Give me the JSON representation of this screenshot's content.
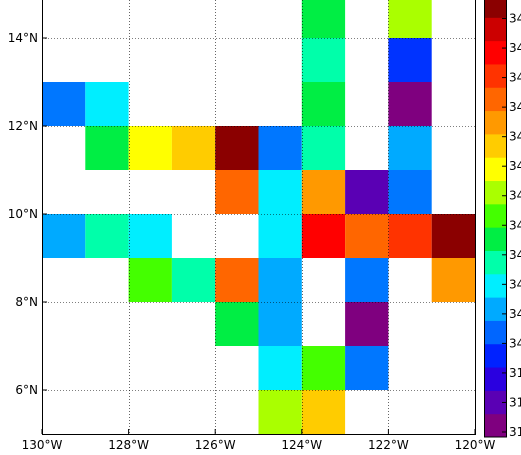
{
  "chart_data": {
    "type": "heatmap",
    "title": "",
    "xlabel": "",
    "ylabel": "",
    "x_range": [
      -130,
      -120
    ],
    "y_range": [
      5,
      15
    ],
    "cell_size_deg": 1,
    "x_ticks": [
      {
        "value": -130,
        "label": "130°W"
      },
      {
        "value": -128,
        "label": "128°W"
      },
      {
        "value": -126,
        "label": "126°W"
      },
      {
        "value": -124,
        "label": "124°W"
      },
      {
        "value": -122,
        "label": "122°W"
      },
      {
        "value": -120,
        "label": "120°W"
      }
    ],
    "y_ticks": [
      {
        "value": 6,
        "label": "6°N"
      },
      {
        "value": 8,
        "label": "8°N"
      },
      {
        "value": 10,
        "label": "10°N"
      },
      {
        "value": 12,
        "label": "12°N"
      },
      {
        "value": 14,
        "label": "14°N"
      }
    ],
    "grid": "dotted",
    "colormap": [
      "#7f007f",
      "#5a00b4",
      "#2a00e0",
      "#0022ff",
      "#0066ff",
      "#00aaff",
      "#00eeff",
      "#00ffaa",
      "#00ee44",
      "#44ff00",
      "#aaff00",
      "#ffff00",
      "#ffcc00",
      "#ff9900",
      "#ff6600",
      "#ff3300",
      "#ff0000",
      "#cc0000",
      "#8b0000"
    ],
    "colorbar_labels": [
      "31",
      "31",
      "31",
      "34",
      "34",
      "34",
      "34",
      "34",
      "34",
      "34",
      "34",
      "34",
      "34",
      "34",
      "34"
    ],
    "cells": [
      {
        "lon": -123.5,
        "lat": 14.5,
        "color": "#00ee44"
      },
      {
        "lon": -121.5,
        "lat": 14.5,
        "color": "#aaff00"
      },
      {
        "lon": -123.5,
        "lat": 13.5,
        "color": "#00ffaa"
      },
      {
        "lon": -121.5,
        "lat": 13.5,
        "color": "#0033ff"
      },
      {
        "lon": -129.5,
        "lat": 12.5,
        "color": "#0077ff"
      },
      {
        "lon": -128.5,
        "lat": 12.5,
        "color": "#00eeff"
      },
      {
        "lon": -123.5,
        "lat": 12.5,
        "color": "#00ee44"
      },
      {
        "lon": -121.5,
        "lat": 12.5,
        "color": "#7f007f"
      },
      {
        "lon": -128.5,
        "lat": 11.5,
        "color": "#00ee44"
      },
      {
        "lon": -127.5,
        "lat": 11.5,
        "color": "#ffff00"
      },
      {
        "lon": -126.5,
        "lat": 11.5,
        "color": "#ffcc00"
      },
      {
        "lon": -125.5,
        "lat": 11.5,
        "color": "#8b0000"
      },
      {
        "lon": -124.5,
        "lat": 11.5,
        "color": "#0077ff"
      },
      {
        "lon": -123.5,
        "lat": 11.5,
        "color": "#00ffaa"
      },
      {
        "lon": -121.5,
        "lat": 11.5,
        "color": "#00aaff"
      },
      {
        "lon": -125.5,
        "lat": 10.5,
        "color": "#ff6600"
      },
      {
        "lon": -124.5,
        "lat": 10.5,
        "color": "#00eeff"
      },
      {
        "lon": -123.5,
        "lat": 10.5,
        "color": "#ff9900"
      },
      {
        "lon": -122.5,
        "lat": 10.5,
        "color": "#5a00b4"
      },
      {
        "lon": -121.5,
        "lat": 10.5,
        "color": "#0077ff"
      },
      {
        "lon": -129.5,
        "lat": 9.5,
        "color": "#00aaff"
      },
      {
        "lon": -128.5,
        "lat": 9.5,
        "color": "#00ffaa"
      },
      {
        "lon": -127.5,
        "lat": 9.5,
        "color": "#00eeff"
      },
      {
        "lon": -124.5,
        "lat": 9.5,
        "color": "#00eeff"
      },
      {
        "lon": -123.5,
        "lat": 9.5,
        "color": "#ff0000"
      },
      {
        "lon": -122.5,
        "lat": 9.5,
        "color": "#ff6600"
      },
      {
        "lon": -121.5,
        "lat": 9.5,
        "color": "#ff3300"
      },
      {
        "lon": -120.5,
        "lat": 9.5,
        "color": "#8b0000"
      },
      {
        "lon": -127.5,
        "lat": 8.5,
        "color": "#44ff00"
      },
      {
        "lon": -126.5,
        "lat": 8.5,
        "color": "#00ffaa"
      },
      {
        "lon": -125.5,
        "lat": 8.5,
        "color": "#ff6600"
      },
      {
        "lon": -124.5,
        "lat": 8.5,
        "color": "#00aaff"
      },
      {
        "lon": -122.5,
        "lat": 8.5,
        "color": "#0077ff"
      },
      {
        "lon": -120.5,
        "lat": 8.5,
        "color": "#ff9900"
      },
      {
        "lon": -125.5,
        "lat": 7.5,
        "color": "#00ee44"
      },
      {
        "lon": -124.5,
        "lat": 7.5,
        "color": "#00aaff"
      },
      {
        "lon": -122.5,
        "lat": 7.5,
        "color": "#7f007f"
      },
      {
        "lon": -124.5,
        "lat": 6.5,
        "color": "#00eeff"
      },
      {
        "lon": -123.5,
        "lat": 6.5,
        "color": "#44ff00"
      },
      {
        "lon": -122.5,
        "lat": 6.5,
        "color": "#0077ff"
      },
      {
        "lon": -124.5,
        "lat": 5.5,
        "color": "#aaff00"
      },
      {
        "lon": -123.5,
        "lat": 5.5,
        "color": "#ffcc00"
      }
    ]
  }
}
